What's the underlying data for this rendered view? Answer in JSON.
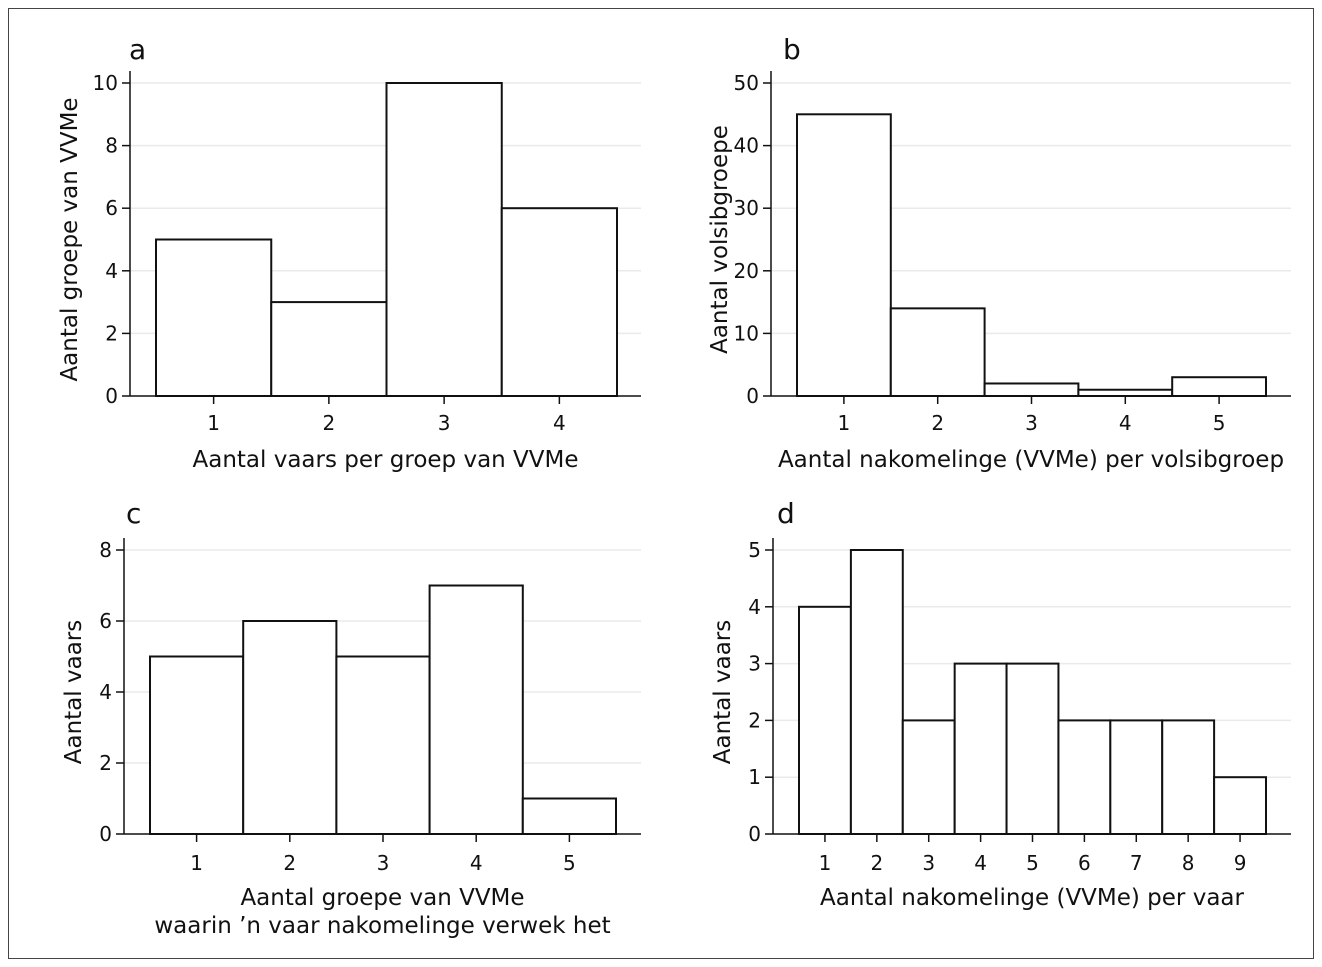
{
  "chart_data": [
    {
      "type": "bar",
      "panel": "a",
      "categories": [
        "1",
        "2",
        "3",
        "4"
      ],
      "values": [
        5,
        3,
        10,
        6
      ],
      "xlabel": [
        "Aantal vaars per groep van VVMe"
      ],
      "ylabel": "Aantal groepe van VVMe",
      "ylim": [
        0,
        10
      ],
      "yticks": [
        0,
        2,
        4,
        6,
        8,
        10
      ],
      "grid": true
    },
    {
      "type": "bar",
      "panel": "b",
      "categories": [
        "1",
        "2",
        "3",
        "4",
        "5"
      ],
      "values": [
        45,
        14,
        2,
        1,
        3
      ],
      "xlabel": [
        "Aantal nakomelinge (VVMe) per volsibgroep"
      ],
      "ylabel": "Aantal volsibgroepe",
      "ylim": [
        0,
        50
      ],
      "yticks": [
        0,
        10,
        20,
        30,
        40,
        50
      ],
      "grid": true
    },
    {
      "type": "bar",
      "panel": "c",
      "categories": [
        "1",
        "2",
        "3",
        "4",
        "5"
      ],
      "values": [
        5,
        6,
        5,
        7,
        1
      ],
      "xlabel": [
        "Aantal groepe van VVMe",
        "waarin ’n vaar nakomelinge verwek het"
      ],
      "ylabel": "Aantal vaars",
      "ylim": [
        0,
        8
      ],
      "yticks": [
        0,
        2,
        4,
        6,
        8
      ],
      "grid": true
    },
    {
      "type": "bar",
      "panel": "d",
      "categories": [
        "1",
        "2",
        "3",
        "4",
        "5",
        "6",
        "7",
        "8",
        "9"
      ],
      "values": [
        4,
        5,
        2,
        3,
        3,
        2,
        2,
        2,
        1
      ],
      "xlabel": [
        "Aantal nakomelinge (VVMe) per vaar"
      ],
      "ylabel": "Aantal vaars",
      "ylim": [
        0,
        5
      ],
      "yticks": [
        0,
        1,
        2,
        3,
        4,
        5
      ],
      "grid": true
    }
  ]
}
